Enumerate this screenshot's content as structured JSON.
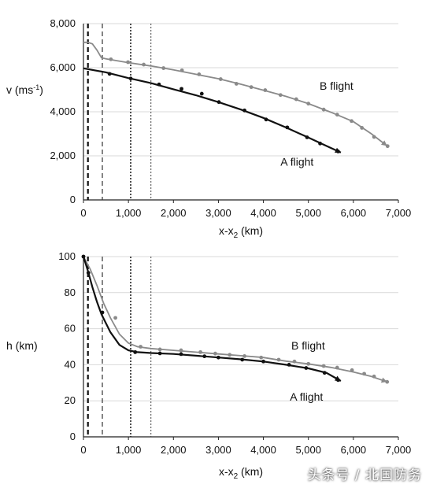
{
  "watermark": "头条号 / 北国防务",
  "colors": {
    "series_a": "#111111",
    "series_b": "#8a8a8a",
    "grid": "#d9d9d9",
    "axis": "#222222"
  },
  "chart_data": [
    {
      "type": "line",
      "grid": true,
      "xlabel": "x-x2 (km)",
      "ylabel": "v (ms-1)",
      "xlim": [
        0,
        7000
      ],
      "ylim": [
        0,
        8000
      ],
      "x_ticks": [
        "0",
        "1,000",
        "2,000",
        "3,000",
        "4,000",
        "5,000",
        "6,000",
        "7,000"
      ],
      "y_ticks": [
        "0",
        "2,000",
        "4,000",
        "6,000",
        "8,000"
      ],
      "vlines": [
        {
          "x": 100,
          "style": "dashed-heavy"
        },
        {
          "x": 420,
          "style": "dashed"
        },
        {
          "x": 1050,
          "style": "dotted-heavy"
        },
        {
          "x": 1500,
          "style": "dotted"
        }
      ],
      "series": [
        {
          "name": "B flight",
          "color": "#8a8a8a",
          "line": [
            [
              0,
              7150
            ],
            [
              100,
              7150
            ],
            [
              200,
              7080
            ],
            [
              300,
              6800
            ],
            [
              400,
              6450
            ],
            [
              500,
              6400
            ],
            [
              1000,
              6230
            ],
            [
              1500,
              6080
            ],
            [
              2000,
              5900
            ],
            [
              2500,
              5700
            ],
            [
              3000,
              5500
            ],
            [
              3500,
              5250
            ],
            [
              4000,
              4980
            ],
            [
              4500,
              4700
            ],
            [
              5000,
              4370
            ],
            [
              5500,
              3980
            ],
            [
              6000,
              3550
            ],
            [
              6400,
              3000
            ],
            [
              6750,
              2450
            ]
          ],
          "markers": [
            [
              610,
              6380
            ],
            [
              990,
              6250
            ],
            [
              1340,
              6140
            ],
            [
              1780,
              5980
            ],
            [
              2190,
              5880
            ],
            [
              2570,
              5700
            ],
            [
              3050,
              5480
            ],
            [
              3400,
              5270
            ],
            [
              3730,
              5120
            ],
            [
              4040,
              4980
            ],
            [
              4380,
              4760
            ],
            [
              4730,
              4570
            ],
            [
              5000,
              4370
            ],
            [
              5340,
              4100
            ],
            [
              5640,
              3870
            ],
            [
              5960,
              3580
            ],
            [
              6190,
              3270
            ],
            [
              6460,
              2860
            ],
            [
              6760,
              2440
            ]
          ]
        },
        {
          "name": "A flight",
          "color": "#111111",
          "line": [
            [
              0,
              5970
            ],
            [
              500,
              5790
            ],
            [
              1000,
              5530
            ],
            [
              1500,
              5300
            ],
            [
              2000,
              5020
            ],
            [
              2500,
              4750
            ],
            [
              3000,
              4440
            ],
            [
              3500,
              4100
            ],
            [
              4000,
              3720
            ],
            [
              4500,
              3290
            ],
            [
              5000,
              2830
            ],
            [
              5400,
              2450
            ],
            [
              5720,
              2150
            ]
          ],
          "markers": [
            [
              580,
              5720
            ],
            [
              1050,
              5510
            ],
            [
              1680,
              5240
            ],
            [
              2180,
              5040
            ],
            [
              2630,
              4820
            ],
            [
              3010,
              4440
            ],
            [
              3580,
              4060
            ],
            [
              4060,
              3650
            ],
            [
              4530,
              3290
            ],
            [
              4970,
              2840
            ],
            [
              5260,
              2560
            ],
            [
              5660,
              2200
            ]
          ]
        }
      ],
      "annotations": [
        {
          "text": "B flight",
          "x": 5250,
          "y": 5000
        },
        {
          "text": "A flight",
          "x": 4380,
          "y": 1550
        }
      ]
    },
    {
      "type": "line",
      "grid": true,
      "xlabel": "x-x2 (km)",
      "ylabel": "h (km)",
      "xlim": [
        0,
        7000
      ],
      "ylim": [
        0,
        100
      ],
      "x_ticks": [
        "0",
        "1,000",
        "2,000",
        "3,000",
        "4,000",
        "5,000",
        "6,000",
        "7,000"
      ],
      "y_ticks": [
        "0",
        "20",
        "40",
        "60",
        "80",
        "100"
      ],
      "vlines": [
        {
          "x": 100,
          "style": "dashed-heavy"
        },
        {
          "x": 420,
          "style": "dashed"
        },
        {
          "x": 1050,
          "style": "dotted-heavy"
        },
        {
          "x": 1500,
          "style": "dotted"
        }
      ],
      "series": [
        {
          "name": "B flight",
          "color": "#8a8a8a",
          "line": [
            [
              0,
              100
            ],
            [
              150,
              93
            ],
            [
              300,
              84
            ],
            [
              450,
              74
            ],
            [
              600,
              66
            ],
            [
              800,
              57
            ],
            [
              1000,
              52
            ],
            [
              1200,
              50
            ],
            [
              1500,
              49
            ],
            [
              2000,
              48
            ],
            [
              2500,
              47
            ],
            [
              3000,
              46
            ],
            [
              3500,
              45
            ],
            [
              4000,
              44
            ],
            [
              4500,
              42
            ],
            [
              5000,
              40.5
            ],
            [
              5500,
              38.5
            ],
            [
              6000,
              36
            ],
            [
              6400,
              33.5
            ],
            [
              6750,
              30.5
            ]
          ],
          "markers": [
            [
              0,
              100
            ],
            [
              710,
              66
            ],
            [
              1270,
              50
            ],
            [
              1700,
              48.5
            ],
            [
              2170,
              48
            ],
            [
              2600,
              47
            ],
            [
              2930,
              46.2
            ],
            [
              3250,
              45.5
            ],
            [
              3580,
              44.8
            ],
            [
              3950,
              44
            ],
            [
              4340,
              42.8
            ],
            [
              4690,
              41.8
            ],
            [
              5000,
              40.5
            ],
            [
              5340,
              39.3
            ],
            [
              5640,
              38.4
            ],
            [
              5970,
              37
            ],
            [
              6240,
              35
            ],
            [
              6460,
              33.5
            ],
            [
              6750,
              30.5
            ]
          ]
        },
        {
          "name": "A flight",
          "color": "#111111",
          "line": [
            [
              0,
              100
            ],
            [
              100,
              92
            ],
            [
              200,
              83
            ],
            [
              300,
              75
            ],
            [
              400,
              68
            ],
            [
              600,
              58
            ],
            [
              800,
              51
            ],
            [
              1000,
              48
            ],
            [
              1200,
              47
            ],
            [
              1500,
              46.5
            ],
            [
              2000,
              46
            ],
            [
              2500,
              45
            ],
            [
              3000,
              44
            ],
            [
              3500,
              43
            ],
            [
              4000,
              41.8
            ],
            [
              4500,
              40
            ],
            [
              5000,
              38
            ],
            [
              5400,
              35.5
            ],
            [
              5720,
              31
            ]
          ],
          "markers": [
            [
              0,
              100
            ],
            [
              110,
              91
            ],
            [
              420,
              69
            ],
            [
              1150,
              47
            ],
            [
              1700,
              46.3
            ],
            [
              2170,
              45.9
            ],
            [
              2690,
              44.7
            ],
            [
              3000,
              44
            ],
            [
              3530,
              42.8
            ],
            [
              4000,
              41.8
            ],
            [
              4570,
              40
            ],
            [
              4950,
              38.2
            ],
            [
              5360,
              35.5
            ],
            [
              5660,
              31.5
            ]
          ]
        }
      ],
      "annotations": [
        {
          "text": "B flight",
          "x": 4620,
          "y": 48.5
        },
        {
          "text": "A flight",
          "x": 4590,
          "y": 20
        }
      ]
    }
  ]
}
